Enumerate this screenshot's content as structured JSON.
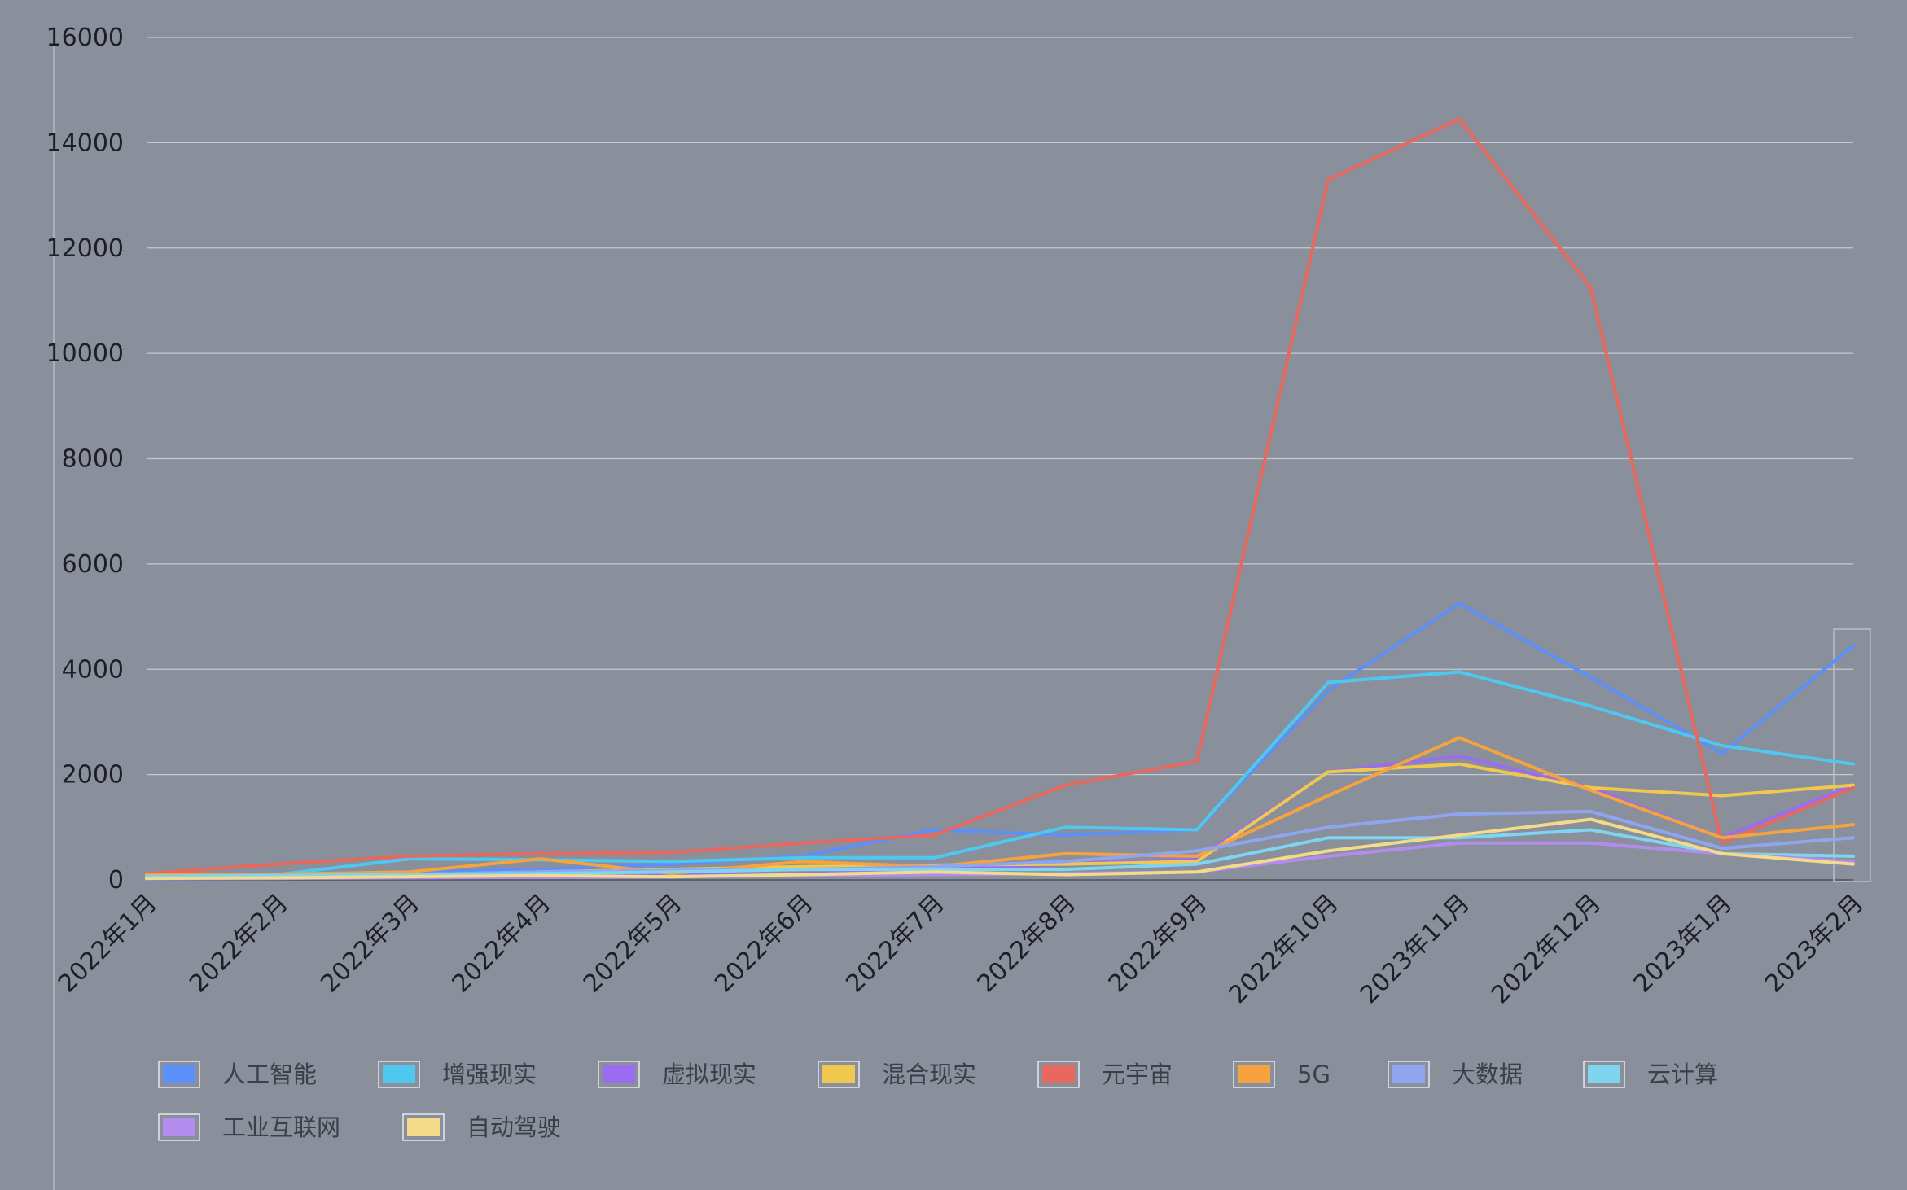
{
  "chart_data": {
    "type": "line",
    "title": "",
    "xlabel": "",
    "ylabel": "",
    "ylim": [
      0,
      16000
    ],
    "y_ticks": [
      0,
      2000,
      4000,
      6000,
      8000,
      10000,
      12000,
      14000,
      16000
    ],
    "grid": true,
    "legend_position": "bottom-left",
    "categories": [
      "2022年1月",
      "2022年2月",
      "2022年3月",
      "2022年4月",
      "2022年5月",
      "2022年6月",
      "2022年7月",
      "2022年8月",
      "2022年9月",
      "2022年10月",
      "2023年11月",
      "2022年12月",
      "2023年1月",
      "2023年2月"
    ],
    "series": [
      {
        "name": "人工智能",
        "color": "#5b8ff9",
        "values": [
          100,
          120,
          150,
          200,
          300,
          450,
          950,
          850,
          950,
          3600,
          5250,
          3850,
          2400,
          4450
        ]
      },
      {
        "name": "增强现实",
        "color": "#4fc8f0",
        "values": [
          80,
          100,
          400,
          380,
          350,
          420,
          420,
          1000,
          950,
          3750,
          3950,
          3300,
          2550,
          2200
        ]
      },
      {
        "name": "虚拟现实",
        "color": "#9b6cf0",
        "values": [
          30,
          40,
          60,
          80,
          100,
          120,
          180,
          300,
          400,
          2050,
          2350,
          1750,
          800,
          1800
        ]
      },
      {
        "name": "混合现实",
        "color": "#f0c850",
        "values": [
          50,
          60,
          100,
          150,
          200,
          250,
          280,
          300,
          350,
          2050,
          2200,
          1750,
          1600,
          1800
        ]
      },
      {
        "name": "元宇宙",
        "color": "#e8685e",
        "values": [
          120,
          300,
          450,
          500,
          520,
          700,
          850,
          1800,
          2250,
          13300,
          14450,
          11250,
          700,
          1750
        ]
      },
      {
        "name": "5G",
        "color": "#f5a23f",
        "values": [
          100,
          110,
          150,
          400,
          120,
          350,
          250,
          500,
          450,
          1600,
          2700,
          1700,
          800,
          1050
        ]
      },
      {
        "name": "大数据",
        "color": "#8fa5f0",
        "values": [
          60,
          70,
          100,
          150,
          180,
          200,
          250,
          350,
          550,
          1000,
          1250,
          1300,
          600,
          800
        ]
      },
      {
        "name": "云计算",
        "color": "#7fd5f0",
        "values": [
          70,
          80,
          100,
          120,
          150,
          200,
          200,
          200,
          300,
          800,
          800,
          950,
          500,
          450
        ]
      },
      {
        "name": "工业互联网",
        "color": "#b48cf0",
        "values": [
          20,
          30,
          40,
          50,
          60,
          80,
          100,
          120,
          150,
          450,
          700,
          700,
          500,
          350
        ]
      },
      {
        "name": "自动驾驶",
        "color": "#f2dc8a",
        "values": [
          30,
          40,
          60,
          80,
          60,
          100,
          150,
          100,
          150,
          550,
          850,
          1150,
          500,
          300
        ]
      }
    ]
  }
}
